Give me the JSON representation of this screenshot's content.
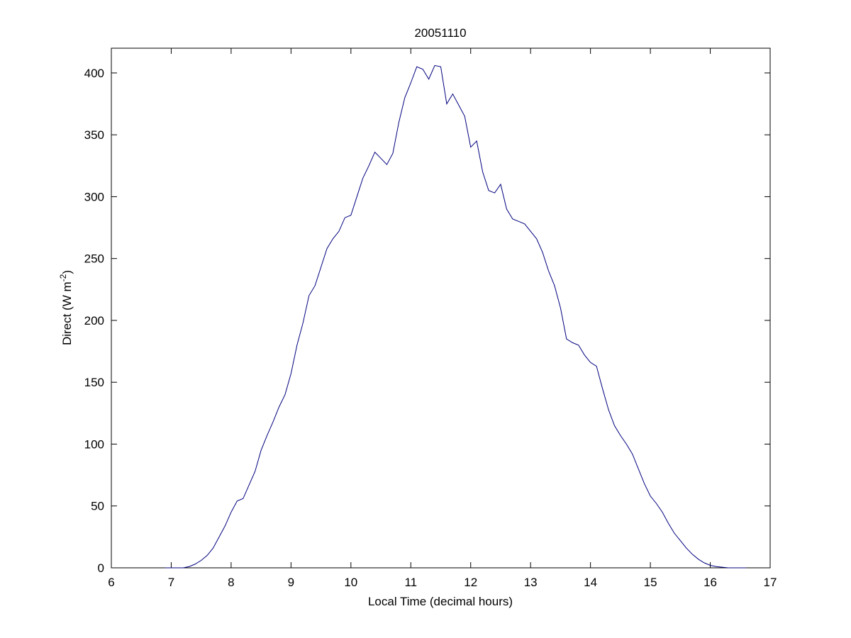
{
  "chart_data": {
    "type": "line",
    "title": "20051110",
    "xlabel": "Local Time (decimal hours)",
    "ylabel": {
      "text": "Direct (W m",
      "superscript": "-2",
      "suffix": ")"
    },
    "x": [
      6.9,
      7.0,
      7.1,
      7.2,
      7.3,
      7.4,
      7.5,
      7.6,
      7.7,
      7.8,
      7.9,
      8.0,
      8.1,
      8.2,
      8.3,
      8.4,
      8.5,
      8.6,
      8.7,
      8.8,
      8.9,
      9.0,
      9.1,
      9.2,
      9.3,
      9.4,
      9.5,
      9.6,
      9.7,
      9.8,
      9.9,
      10.0,
      10.1,
      10.2,
      10.3,
      10.4,
      10.5,
      10.6,
      10.7,
      10.8,
      10.9,
      11.0,
      11.1,
      11.2,
      11.3,
      11.4,
      11.5,
      11.6,
      11.7,
      11.8,
      11.9,
      12.0,
      12.1,
      12.2,
      12.3,
      12.4,
      12.5,
      12.6,
      12.7,
      12.8,
      12.9,
      13.0,
      13.1,
      13.2,
      13.3,
      13.4,
      13.5,
      13.6,
      13.7,
      13.8,
      13.9,
      14.0,
      14.1,
      14.2,
      14.3,
      14.4,
      14.5,
      14.6,
      14.7,
      14.8,
      14.9,
      15.0,
      15.1,
      15.2,
      15.3,
      15.4,
      15.5,
      15.6,
      15.7,
      15.8,
      15.9,
      16.0,
      16.1,
      16.2,
      16.3,
      16.4,
      16.5,
      16.6
    ],
    "series": [
      {
        "color": "#00007f",
        "values": [
          0,
          0,
          0,
          0,
          1,
          3,
          6,
          10,
          16,
          25,
          34,
          45,
          54,
          56,
          67,
          78,
          95,
          107,
          118,
          130,
          140,
          157,
          180,
          198,
          220,
          228,
          243,
          258,
          266,
          272,
          283,
          285,
          300,
          315,
          325,
          336,
          331,
          326,
          335,
          360,
          380,
          392,
          405,
          403,
          395,
          406,
          405,
          375,
          383,
          374,
          365,
          340,
          345,
          320,
          305,
          303,
          310,
          290,
          282,
          280,
          278,
          272,
          266,
          255,
          240,
          228,
          210,
          185,
          182,
          180,
          172,
          166,
          163,
          145,
          128,
          115,
          107,
          100,
          92,
          80,
          68,
          58,
          52,
          45,
          36,
          28,
          22,
          16,
          11,
          7,
          4,
          2,
          1,
          0.5,
          0,
          0,
          0,
          0
        ]
      }
    ],
    "xlim": [
      6,
      17
    ],
    "xticks": [
      6,
      7,
      8,
      9,
      10,
      11,
      12,
      13,
      14,
      15,
      16,
      17
    ],
    "ylim": [
      0,
      420
    ],
    "yticks": [
      0,
      50,
      100,
      150,
      200,
      250,
      300,
      350,
      400
    ],
    "grid": false
  }
}
